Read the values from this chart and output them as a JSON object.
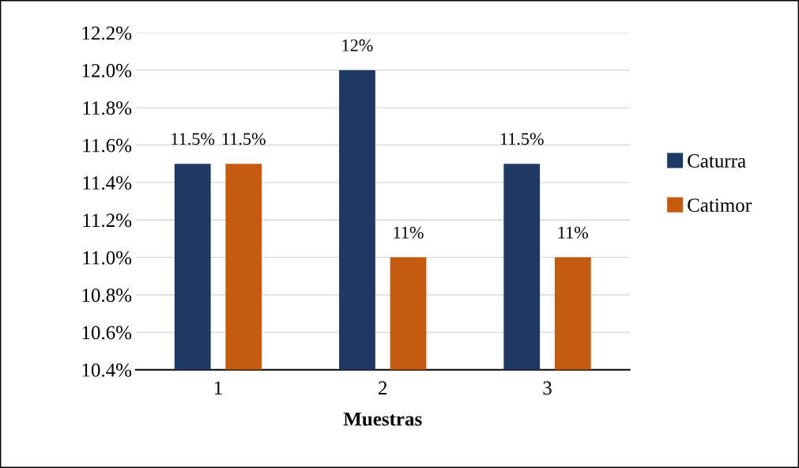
{
  "chart_data": {
    "type": "bar",
    "xlabel": "Muestras",
    "categories": [
      "1",
      "2",
      "3"
    ],
    "series": [
      {
        "name": "Caturra",
        "color": "#203864",
        "values": [
          11.5,
          12.0,
          11.5
        ],
        "value_labels": [
          "11.5%",
          "12%",
          "11.5%"
        ]
      },
      {
        "name": "Catimor",
        "color": "#c55a11",
        "values": [
          11.5,
          11.0,
          11.0
        ],
        "value_labels": [
          "11.5%",
          "11%",
          "11%"
        ]
      }
    ],
    "ylim": [
      10.4,
      12.2
    ],
    "yticks": [
      {
        "value": 10.4,
        "label": "10.4%"
      },
      {
        "value": 10.6,
        "label": "10.6%"
      },
      {
        "value": 10.8,
        "label": "10.8%"
      },
      {
        "value": 11.0,
        "label": "11.0%"
      },
      {
        "value": 11.2,
        "label": "11.2%"
      },
      {
        "value": 11.4,
        "label": "11.4%"
      },
      {
        "value": 11.6,
        "label": "11.6%"
      },
      {
        "value": 11.8,
        "label": "11.8%"
      },
      {
        "value": 12.0,
        "label": "12.0%"
      },
      {
        "value": 12.2,
        "label": "12.2%"
      }
    ],
    "grid": "y",
    "legend": "right"
  }
}
